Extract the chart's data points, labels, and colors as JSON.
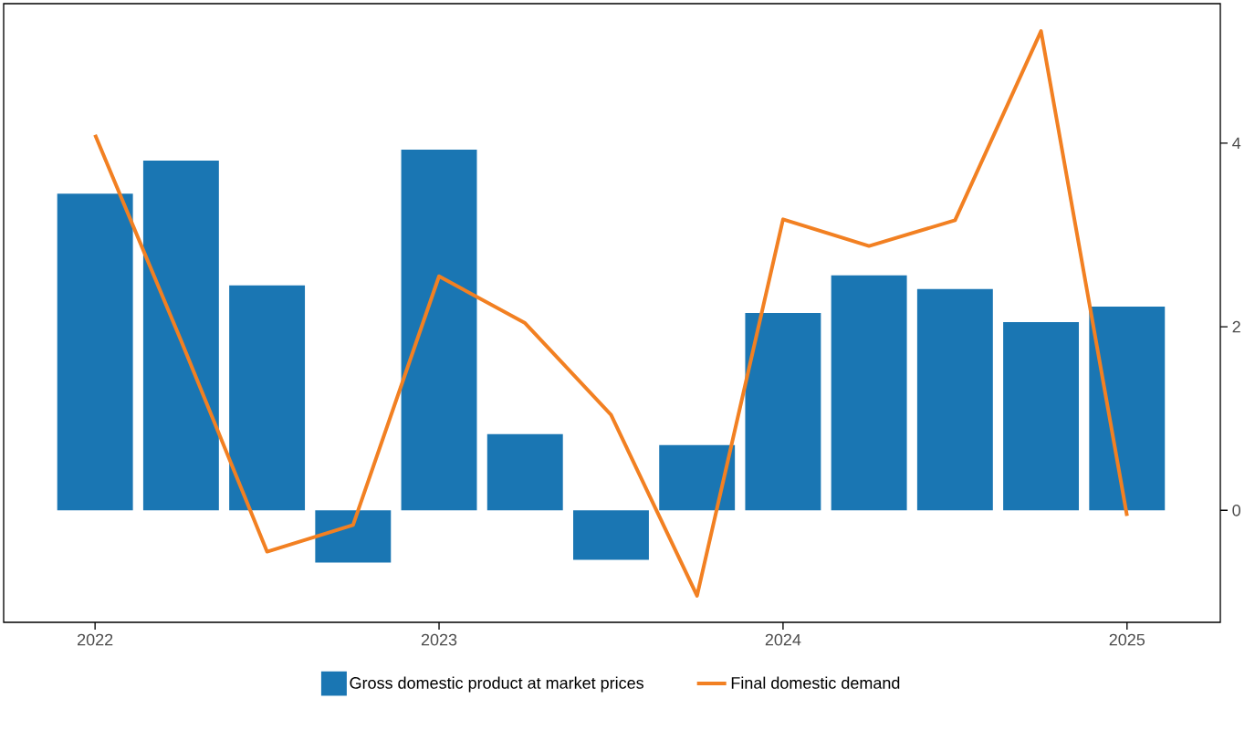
{
  "chart_data": {
    "type": "bar",
    "x": [
      "2022-01",
      "2022-04",
      "2022-07",
      "2022-10",
      "2023-01",
      "2023-04",
      "2023-07",
      "2023-10",
      "2024-01",
      "2024-04",
      "2024-07",
      "2024-10",
      "2025-01"
    ],
    "series": [
      {
        "name": "Gross domestic product at market prices",
        "color": "#1a76b3",
        "values": [
          3.45,
          3.81,
          2.45,
          -0.57,
          3.93,
          0.83,
          -0.54,
          0.71,
          2.15,
          2.56,
          2.41,
          2.05,
          2.22
        ]
      },
      {
        "name": "Final domestic demand",
        "type": "line",
        "color": "#f28022",
        "values": [
          4.09,
          1.85,
          -0.45,
          -0.16,
          2.55,
          2.04,
          1.04,
          -0.93,
          3.17,
          2.88,
          3.16,
          5.22,
          -0.06
        ]
      }
    ],
    "xlim": [
      "2021-09-26",
      "2025-04-10"
    ],
    "xticks": [
      "2022",
      "2023",
      "2024",
      "2025"
    ],
    "ylim": [
      -1.22,
      5.52
    ],
    "yticks": [
      0,
      2,
      4
    ],
    "legend": "bottom",
    "marker": "none",
    "line_style": "solid"
  }
}
